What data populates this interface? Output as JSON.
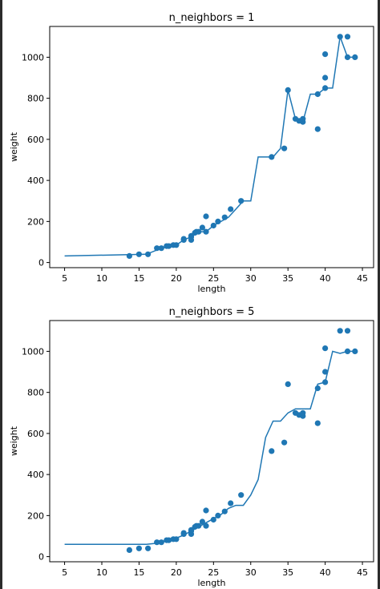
{
  "colors": {
    "series": "#1f77b4",
    "axes": "#000000",
    "background": "#ffffff",
    "window": "#1e1e1e"
  },
  "chart_data": [
    {
      "type": "scatter",
      "title": "n_neighbors = 1",
      "xlabel": "length",
      "ylabel": "weight",
      "xlim": [
        3,
        46.5
      ],
      "ylim": [
        -25,
        1150
      ],
      "xticks": [
        5,
        10,
        15,
        20,
        25,
        30,
        35,
        40,
        45
      ],
      "yticks": [
        0,
        200,
        400,
        600,
        800,
        1000
      ],
      "grid": false,
      "points": {
        "x": [
          13.7,
          15.0,
          16.2,
          17.4,
          18.0,
          18.7,
          19.0,
          19.6,
          20.0,
          21.0,
          21.0,
          22.0,
          22.0,
          22.0,
          22.5,
          22.7,
          23.0,
          23.5,
          24.0,
          24.0,
          25.0,
          25.6,
          26.5,
          27.3,
          28.7,
          32.8,
          34.5,
          35.0,
          36.0,
          36.5,
          37.0,
          37.0,
          39.0,
          39.0,
          40.0,
          40.0,
          40.0,
          42.0,
          43.0,
          43.0,
          44.0
        ],
        "y": [
          32,
          40,
          40,
          70,
          70,
          80,
          80,
          85,
          85,
          110,
          115,
          110,
          125,
          130,
          145,
          150,
          150,
          170,
          150,
          225,
          180,
          200,
          220,
          260,
          300,
          514,
          556,
          840,
          700,
          690,
          685,
          700,
          650,
          820,
          850,
          900,
          1015,
          1100,
          1000,
          1100,
          1000
        ]
      },
      "prediction_line": {
        "x": [
          5,
          16,
          18,
          20,
          21,
          22,
          23,
          24,
          25,
          26,
          27,
          28,
          29,
          30,
          31,
          32,
          33,
          34,
          35,
          36,
          37,
          38,
          39,
          40,
          41,
          42,
          43,
          44
        ],
        "y": [
          32,
          40,
          70,
          85,
          110,
          125,
          150,
          150,
          180,
          200,
          220,
          260,
          300,
          300,
          514,
          514,
          514,
          556,
          840,
          700,
          685,
          820,
          820,
          850,
          850,
          1100,
          1000,
          1000
        ]
      }
    },
    {
      "type": "scatter",
      "title": "n_neighbors = 5",
      "xlabel": "length",
      "ylabel": "weight",
      "xlim": [
        3,
        46.5
      ],
      "ylim": [
        -25,
        1150
      ],
      "xticks": [
        5,
        10,
        15,
        20,
        25,
        30,
        35,
        40,
        45
      ],
      "yticks": [
        0,
        200,
        400,
        600,
        800,
        1000
      ],
      "grid": false,
      "points": {
        "x": [
          13.7,
          15.0,
          16.2,
          17.4,
          18.0,
          18.7,
          19.0,
          19.6,
          20.0,
          21.0,
          21.0,
          22.0,
          22.0,
          22.0,
          22.5,
          22.7,
          23.0,
          23.5,
          24.0,
          24.0,
          25.0,
          25.6,
          26.5,
          27.3,
          28.7,
          32.8,
          34.5,
          35.0,
          36.0,
          36.5,
          37.0,
          37.0,
          39.0,
          39.0,
          40.0,
          40.0,
          40.0,
          42.0,
          43.0,
          43.0,
          44.0
        ],
        "y": [
          32,
          40,
          40,
          70,
          70,
          80,
          80,
          85,
          85,
          110,
          115,
          110,
          125,
          130,
          145,
          150,
          150,
          170,
          150,
          225,
          180,
          200,
          220,
          260,
          300,
          514,
          556,
          840,
          700,
          690,
          685,
          700,
          650,
          820,
          850,
          900,
          1015,
          1100,
          1000,
          1100,
          1000
        ]
      },
      "prediction_line": {
        "x": [
          5,
          15,
          16,
          17,
          18,
          19,
          20,
          21,
          22,
          23,
          24,
          25,
          26,
          27,
          28,
          29,
          30,
          31,
          32,
          33,
          34,
          35,
          36,
          37,
          38,
          39,
          40,
          41,
          42,
          43,
          44
        ],
        "y": [
          60,
          60,
          60,
          64,
          72,
          80,
          90,
          105,
          125,
          145,
          165,
          185,
          205,
          235,
          250,
          250,
          300,
          375,
          580,
          660,
          660,
          700,
          720,
          720,
          720,
          840,
          850,
          1000,
          990,
          1000,
          1000
        ]
      }
    }
  ]
}
